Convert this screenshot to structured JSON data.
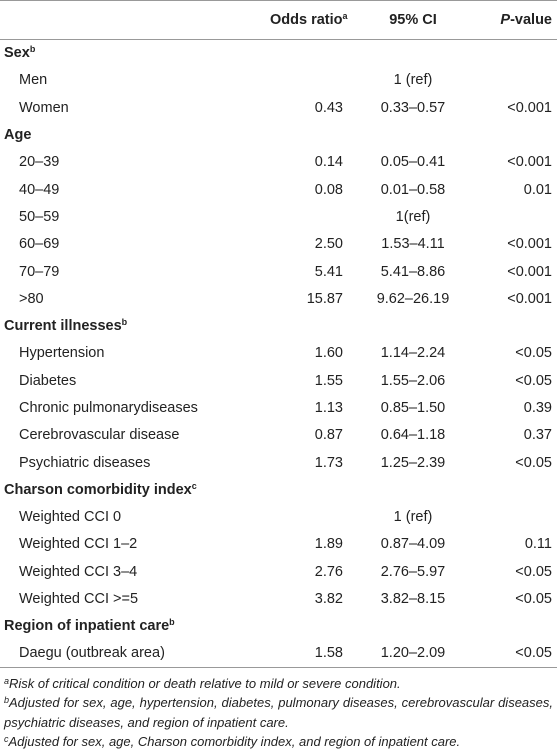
{
  "table": {
    "header": {
      "odds_ratio": "Odds ratio",
      "odds_ratio_note": "a",
      "ci": "95% CI",
      "p_letter": "P",
      "p_rest": "-value"
    },
    "groups": [
      {
        "label": "Sex",
        "note": "b",
        "rows": [
          {
            "label": "Men",
            "ci": "1 (ref)"
          },
          {
            "label": "Women",
            "or": "0.43",
            "ci": "0.33–0.57",
            "p": "<0.001"
          }
        ]
      },
      {
        "label": "Age",
        "rows": [
          {
            "label": "20–39",
            "or": "0.14",
            "ci": "0.05–0.41",
            "p": "<0.001"
          },
          {
            "label": "40–49",
            "or": "0.08",
            "ci": "0.01–0.58",
            "p": "0.01"
          },
          {
            "label": "50–59",
            "ci": "1(ref)"
          },
          {
            "label": "60–69",
            "or": "2.50",
            "ci": "1.53–4.11",
            "p": "<0.001"
          },
          {
            "label": "70–79",
            "or": "5.41",
            "ci": "5.41–8.86",
            "p": "<0.001"
          },
          {
            "label": ">80",
            "or": "15.87",
            "ci": "9.62–26.19",
            "p": "<0.001"
          }
        ]
      },
      {
        "label": "Current illnesses",
        "note": "b",
        "rows": [
          {
            "label": "Hypertension",
            "or": "1.60",
            "ci": "1.14–2.24",
            "p": "<0.05"
          },
          {
            "label": "Diabetes",
            "or": "1.55",
            "ci": "1.55–2.06",
            "p": "<0.05"
          },
          {
            "label": "Chronic pulmonarydiseases",
            "or": "1.13",
            "ci": "0.85–1.50",
            "p": "0.39"
          },
          {
            "label": "Cerebrovascular disease",
            "or": "0.87",
            "ci": "0.64–1.18",
            "p": "0.37"
          },
          {
            "label": "Psychiatric diseases",
            "or": "1.73",
            "ci": "1.25–2.39",
            "p": "<0.05"
          }
        ]
      },
      {
        "label": "Charson comorbidity index",
        "note": "c",
        "rows": [
          {
            "label": "Weighted CCI 0",
            "ci": "1 (ref)"
          },
          {
            "label": "Weighted CCI 1–2",
            "or": "1.89",
            "ci": "0.87–4.09",
            "p": "0.11"
          },
          {
            "label": "Weighted CCI 3–4",
            "or": "2.76",
            "ci": "2.76–5.97",
            "p": "<0.05"
          },
          {
            "label": "Weighted CCI >=5",
            "or": "3.82",
            "ci": "3.82–8.15",
            "p": "<0.05"
          }
        ]
      },
      {
        "label": "Region of inpatient care",
        "note": "b",
        "rows": [
          {
            "label": "Daegu (outbreak area)",
            "or": "1.58",
            "ci": "1.20–2.09",
            "p": "<0.05"
          }
        ]
      }
    ],
    "footnotes": [
      {
        "mark": "a",
        "text": "Risk of critical condition or death relative to mild or severe condition."
      },
      {
        "mark": "b",
        "text": "Adjusted for sex, age, hypertension, diabetes, pulmonary diseases, cerebrovascular diseases, psychiatric diseases, and region of inpatient care."
      },
      {
        "mark": "c",
        "text": "Adjusted for sex, age, Charson comorbidity index, and region of inpatient care."
      }
    ]
  }
}
